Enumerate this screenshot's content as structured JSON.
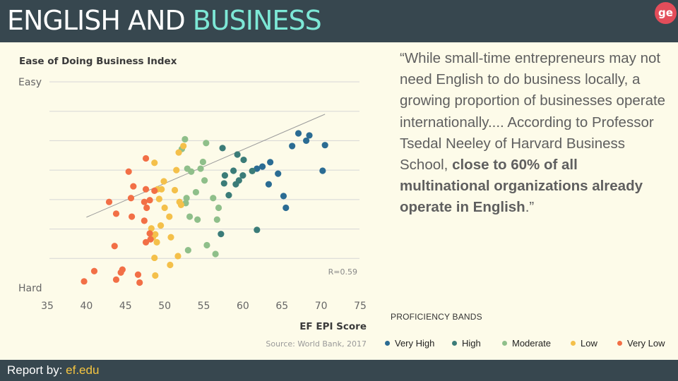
{
  "header": {
    "title_main": "ENGLISH AND ",
    "title_highlight": "BUSINESS"
  },
  "footer": {
    "report_label": "Report by: ",
    "report_link": "ef.edu"
  },
  "quote": {
    "text_1": "“While small-time entrepreneurs may not need English to do business locally, a growing proportion of businesses operate internationally.... According to Professor Tsedal Neeley of Harvard Business School, ",
    "text_bold": "close to 60% of all multinational organizations already operate in English",
    "text_2": ".”"
  },
  "colors": {
    "header_bg": "#37474f",
    "accent": "#7de8d6",
    "link": "#f5c541",
    "background": "#fdfbe9"
  },
  "chart_data": {
    "type": "scatter",
    "title": "Ease of Doing Business Index",
    "xlabel": "EF EPI Score",
    "ylabel_top": "Easy",
    "ylabel_bottom": "Hard",
    "source": "Source: World Bank, 2017",
    "annotation": "R=0.59",
    "xlim": [
      35,
      75
    ],
    "x_ticks": [
      "35",
      "40",
      "45",
      "50",
      "55",
      "60",
      "65",
      "70",
      "75"
    ],
    "y_axis_numeric": "ease index, 0 (Hard) to 7 (Easy); tick labels only at ends",
    "ylim": [
      0,
      7
    ],
    "y_gridlines": [
      1,
      2,
      3,
      4,
      5,
      6,
      7
    ],
    "grid": true,
    "trendline": {
      "from": [
        40,
        2.4
      ],
      "to": [
        70.5,
        5.9
      ]
    },
    "legend_title": "PROFICIENCY BANDS",
    "legend_placement": "bottom-right",
    "series": [
      {
        "name": "Very High",
        "color": "#2b6c93",
        "points": [
          [
            67.1,
            5.25
          ],
          [
            68.5,
            5.18
          ],
          [
            68.1,
            5.0
          ],
          [
            70.5,
            4.85
          ],
          [
            66.3,
            4.82
          ],
          [
            63.5,
            4.27
          ],
          [
            62.5,
            4.12
          ],
          [
            61.8,
            4.05
          ],
          [
            64.5,
            3.88
          ],
          [
            70.2,
            3.98
          ],
          [
            63.3,
            3.52
          ],
          [
            65.2,
            3.12
          ],
          [
            65.5,
            2.72
          ]
        ]
      },
      {
        "name": "High",
        "color": "#3b7c78",
        "points": [
          [
            57.4,
            4.75
          ],
          [
            59.3,
            4.53
          ],
          [
            60.1,
            4.35
          ],
          [
            61.2,
            3.97
          ],
          [
            58.8,
            3.98
          ],
          [
            57.7,
            3.82
          ],
          [
            60.0,
            3.82
          ],
          [
            59.5,
            3.65
          ],
          [
            57.6,
            3.55
          ],
          [
            59.1,
            3.52
          ],
          [
            58.2,
            3.15
          ],
          [
            61.8,
            1.97
          ],
          [
            57.2,
            1.83
          ]
        ]
      },
      {
        "name": "Moderate",
        "color": "#8fbf8a",
        "points": [
          [
            52.6,
            5.05
          ],
          [
            55.3,
            4.92
          ],
          [
            52.2,
            4.72
          ],
          [
            54.9,
            4.28
          ],
          [
            52.9,
            4.05
          ],
          [
            53.4,
            3.95
          ],
          [
            54.6,
            4.05
          ],
          [
            55.1,
            3.65
          ],
          [
            54.0,
            3.25
          ],
          [
            52.8,
            3.05
          ],
          [
            52.7,
            2.88
          ],
          [
            56.2,
            3.05
          ],
          [
            56.9,
            2.72
          ],
          [
            53.2,
            2.42
          ],
          [
            54.2,
            2.32
          ],
          [
            56.7,
            2.32
          ],
          [
            55.4,
            1.45
          ],
          [
            53.0,
            1.28
          ],
          [
            56.5,
            1.15
          ]
        ]
      },
      {
        "name": "Low",
        "color": "#f4c04a",
        "points": [
          [
            52.4,
            4.82
          ],
          [
            51.8,
            4.6
          ],
          [
            48.7,
            4.25
          ],
          [
            51.5,
            4.0
          ],
          [
            49.9,
            3.62
          ],
          [
            49.1,
            3.35
          ],
          [
            49.6,
            3.35
          ],
          [
            51.3,
            3.32
          ],
          [
            49.3,
            3.02
          ],
          [
            51.9,
            2.92
          ],
          [
            50.0,
            2.72
          ],
          [
            52.1,
            2.82
          ],
          [
            50.6,
            2.42
          ],
          [
            49.5,
            2.12
          ],
          [
            48.3,
            2.02
          ],
          [
            48.8,
            1.82
          ],
          [
            48.5,
            1.72
          ],
          [
            50.8,
            1.72
          ],
          [
            49.0,
            1.55
          ],
          [
            48.7,
            1.02
          ],
          [
            51.7,
            1.08
          ],
          [
            50.7,
            0.78
          ],
          [
            48.8,
            0.42
          ]
        ]
      },
      {
        "name": "Very Low",
        "color": "#f26f46",
        "points": [
          [
            47.6,
            4.4
          ],
          [
            45.4,
            3.95
          ],
          [
            46.0,
            3.45
          ],
          [
            47.6,
            3.35
          ],
          [
            48.7,
            3.3
          ],
          [
            45.7,
            3.05
          ],
          [
            48.1,
            2.98
          ],
          [
            47.4,
            2.92
          ],
          [
            42.9,
            2.92
          ],
          [
            47.7,
            2.72
          ],
          [
            43.8,
            2.52
          ],
          [
            45.8,
            2.42
          ],
          [
            47.4,
            2.28
          ],
          [
            48.1,
            1.85
          ],
          [
            48.2,
            1.65
          ],
          [
            47.6,
            1.55
          ],
          [
            43.6,
            1.42
          ],
          [
            41.0,
            0.57
          ],
          [
            44.6,
            0.62
          ],
          [
            44.4,
            0.52
          ],
          [
            46.6,
            0.45
          ],
          [
            39.7,
            0.22
          ],
          [
            43.8,
            0.28
          ],
          [
            46.8,
            0.18
          ]
        ]
      }
    ]
  }
}
